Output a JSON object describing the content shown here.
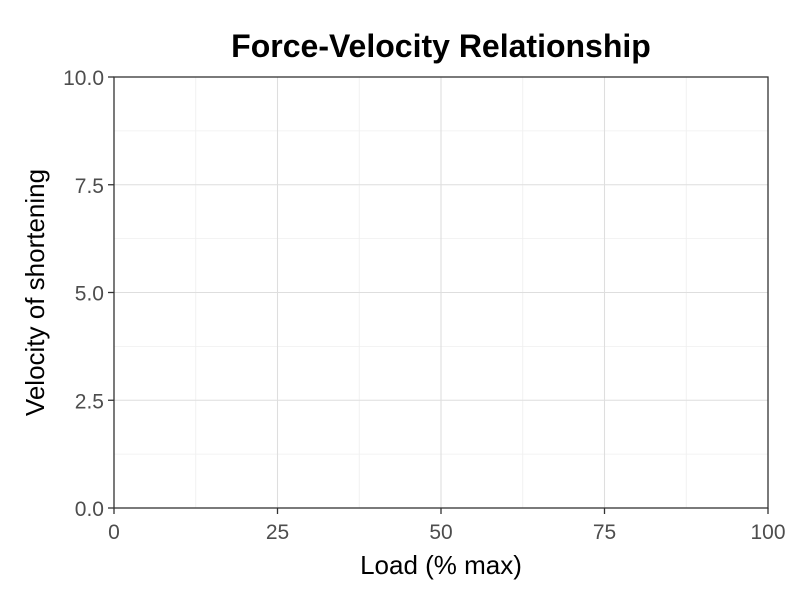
{
  "chart_data": {
    "type": "line",
    "title": "Force-Velocity Relationship",
    "xlabel": "Load (% max)",
    "ylabel": "Velocity of shortening",
    "xlim": [
      0,
      100
    ],
    "ylim": [
      0,
      10
    ],
    "x_ticks": [
      0,
      25,
      50,
      75,
      100
    ],
    "x_tick_labels": [
      "0",
      "25",
      "50",
      "75",
      "100"
    ],
    "y_ticks": [
      0,
      2.5,
      5,
      7.5,
      10
    ],
    "y_tick_labels": [
      "0.0",
      "2.5",
      "5.0",
      "7.5",
      "10.0"
    ],
    "x_minor_ticks": [
      12.5,
      37.5,
      62.5,
      87.5
    ],
    "y_minor_ticks": [
      1.25,
      3.75,
      6.25,
      8.75
    ],
    "grid": true,
    "series": []
  }
}
